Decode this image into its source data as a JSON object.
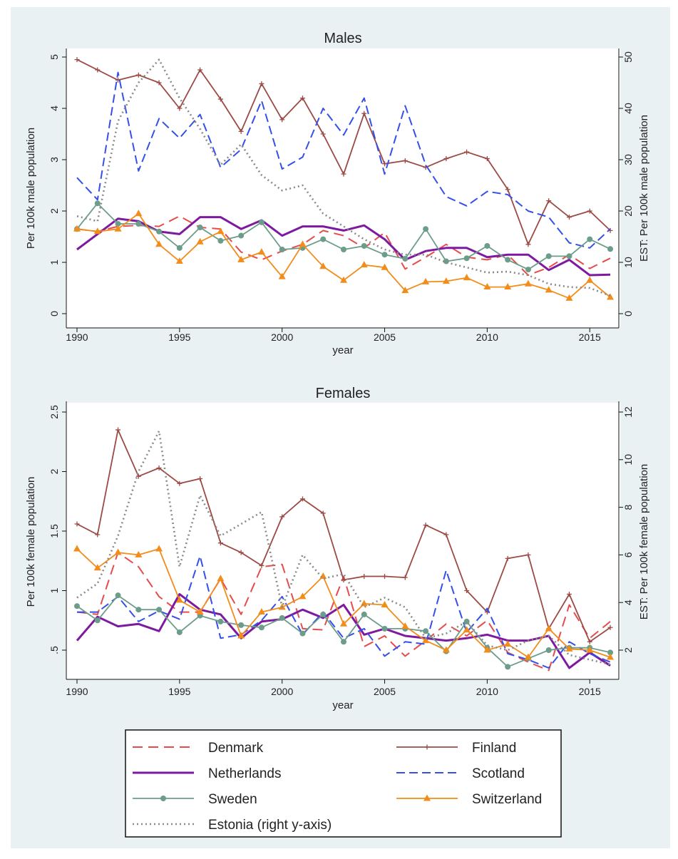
{
  "chart_data": [
    {
      "type": "line",
      "title": "Males",
      "xlabel": "year",
      "ylabel": "Per 100k male population",
      "y2label": "EST: Per 100k male population",
      "xlim": [
        1990,
        2016
      ],
      "ylim": [
        0,
        5
      ],
      "y2lim": [
        0,
        50
      ],
      "xticks": [
        1990,
        1995,
        2000,
        2005,
        2010,
        2015
      ],
      "yticks": [
        0,
        1,
        2,
        3,
        4,
        5
      ],
      "y2ticks": [
        0,
        10,
        20,
        30,
        40,
        50
      ],
      "x": [
        1990,
        1991,
        1992,
        1993,
        1994,
        1995,
        1996,
        1997,
        1998,
        1999,
        2000,
        2001,
        2002,
        2003,
        2004,
        2005,
        2006,
        2007,
        2008,
        2009,
        2010,
        2011,
        2012,
        2013,
        2014,
        2015,
        2016
      ],
      "series": [
        {
          "name": "Denmark",
          "axis": "left",
          "values": [
            1.65,
            1.6,
            1.7,
            1.72,
            1.7,
            1.9,
            1.68,
            1.65,
            1.2,
            1.05,
            1.22,
            1.35,
            1.62,
            1.52,
            1.28,
            1.58,
            0.87,
            1.1,
            1.35,
            1.1,
            1.05,
            1.15,
            0.75,
            0.9,
            1.15,
            0.88,
            1.08
          ]
        },
        {
          "name": "Finland",
          "axis": "left",
          "values": [
            4.95,
            4.75,
            4.55,
            4.65,
            4.5,
            4.0,
            4.75,
            4.18,
            3.55,
            4.48,
            3.78,
            4.2,
            3.5,
            2.72,
            3.9,
            2.92,
            2.98,
            2.85,
            3.02,
            3.15,
            3.02,
            2.42,
            1.35,
            2.2,
            1.88,
            2.0,
            1.62
          ]
        },
        {
          "name": "Netherlands",
          "axis": "left",
          "values": [
            1.25,
            1.55,
            1.85,
            1.8,
            1.6,
            1.55,
            1.88,
            1.88,
            1.65,
            1.82,
            1.52,
            1.7,
            1.7,
            1.62,
            1.72,
            1.45,
            1.05,
            1.22,
            1.28,
            1.28,
            1.1,
            1.15,
            1.15,
            0.85,
            1.05,
            0.75,
            0.76
          ]
        },
        {
          "name": "Scotland",
          "axis": "left",
          "values": [
            2.65,
            2.22,
            4.7,
            2.78,
            3.8,
            3.42,
            3.88,
            2.85,
            3.2,
            4.15,
            2.82,
            3.05,
            4.0,
            3.48,
            4.2,
            2.72,
            4.05,
            2.9,
            2.28,
            2.1,
            2.38,
            2.32,
            2.0,
            1.88,
            1.38,
            1.28,
            1.65
          ]
        },
        {
          "name": "Sweden",
          "axis": "left",
          "values": [
            1.65,
            2.15,
            1.75,
            1.75,
            1.6,
            1.28,
            1.68,
            1.42,
            1.52,
            1.78,
            1.25,
            1.28,
            1.45,
            1.25,
            1.32,
            1.15,
            1.07,
            1.65,
            1.02,
            1.08,
            1.32,
            1.05,
            0.86,
            1.12,
            1.12,
            1.45,
            1.26
          ]
        },
        {
          "name": "Switzerland",
          "axis": "left",
          "values": [
            1.65,
            1.6,
            1.65,
            1.95,
            1.35,
            1.02,
            1.4,
            1.6,
            1.05,
            1.2,
            0.72,
            1.35,
            0.92,
            0.65,
            0.95,
            0.9,
            0.45,
            0.62,
            0.63,
            0.7,
            0.52,
            0.52,
            0.58,
            0.46,
            0.3,
            0.65,
            0.32
          ]
        },
        {
          "name": "Estonia (right y-axis)",
          "axis": "right",
          "values": [
            19.0,
            18.0,
            37.5,
            45.0,
            49.5,
            42.0,
            36.0,
            29.0,
            33.0,
            27.0,
            24.0,
            25.0,
            19.5,
            17.0,
            14.5,
            12.5,
            11.5,
            11.5,
            10.0,
            9.0,
            8.0,
            8.2,
            7.5,
            5.8,
            5.2,
            5.0,
            3.5
          ]
        }
      ]
    },
    {
      "type": "line",
      "title": "Females",
      "xlabel": "year",
      "ylabel": "Per 100k female population",
      "y2label": "EST: Per 100k female population",
      "xlim": [
        1990,
        2016
      ],
      "ylim": [
        0.3,
        2.5
      ],
      "y2lim": [
        1.2,
        12
      ],
      "xticks": [
        1990,
        1995,
        2000,
        2005,
        2010,
        2015
      ],
      "yticks": [
        0.5,
        1,
        1.5,
        2,
        2.5
      ],
      "ytick_labels": [
        ".5",
        "1",
        "1.5",
        "2",
        "2.5"
      ],
      "y2ticks": [
        2,
        4,
        6,
        8,
        10,
        12
      ],
      "x": [
        1990,
        1991,
        1992,
        1993,
        1994,
        1995,
        1996,
        1997,
        1998,
        1999,
        2000,
        2001,
        2002,
        2003,
        2004,
        2005,
        2006,
        2007,
        2008,
        2009,
        2010,
        2011,
        2012,
        2013,
        2014,
        2015,
        2016
      ],
      "series": [
        {
          "name": "Denmark",
          "axis": "left",
          "values": [
            0.82,
            0.8,
            1.32,
            1.2,
            0.95,
            0.82,
            0.82,
            1.1,
            0.8,
            1.2,
            1.22,
            0.68,
            0.67,
            1.12,
            0.53,
            0.62,
            0.45,
            0.58,
            0.72,
            0.62,
            0.75,
            0.48,
            0.4,
            0.33,
            0.88,
            0.6,
            0.74
          ]
        },
        {
          "name": "Finland",
          "axis": "left",
          "values": [
            1.56,
            1.47,
            2.35,
            1.96,
            2.03,
            1.9,
            1.94,
            1.4,
            1.32,
            1.21,
            1.62,
            1.77,
            1.65,
            1.09,
            1.12,
            1.12,
            1.11,
            1.55,
            1.47,
            1.0,
            0.82,
            1.27,
            1.3,
            0.68,
            0.97,
            0.57,
            0.69
          ]
        },
        {
          "name": "Netherlands",
          "axis": "left",
          "values": [
            0.58,
            0.78,
            0.7,
            0.72,
            0.66,
            0.97,
            0.84,
            0.8,
            0.6,
            0.74,
            0.76,
            0.84,
            0.77,
            0.88,
            0.63,
            0.68,
            0.62,
            0.6,
            0.58,
            0.6,
            0.63,
            0.58,
            0.58,
            0.62,
            0.35,
            0.48,
            0.37
          ]
        },
        {
          "name": "Scotland",
          "axis": "left",
          "values": [
            0.82,
            0.82,
            0.95,
            0.74,
            0.83,
            0.76,
            1.29,
            0.6,
            0.63,
            0.75,
            0.95,
            0.63,
            0.82,
            0.6,
            0.68,
            0.45,
            0.57,
            0.55,
            1.17,
            0.65,
            0.85,
            0.47,
            0.42,
            0.35,
            0.57,
            0.47,
            0.4
          ]
        },
        {
          "name": "Sweden",
          "axis": "left",
          "values": [
            0.87,
            0.75,
            0.96,
            0.84,
            0.84,
            0.65,
            0.79,
            0.74,
            0.71,
            0.69,
            0.77,
            0.64,
            0.8,
            0.57,
            0.8,
            0.68,
            0.68,
            0.66,
            0.49,
            0.74,
            0.52,
            0.36,
            0.43,
            0.5,
            0.52,
            0.52,
            0.48
          ]
        },
        {
          "name": "Switzerland",
          "axis": "left",
          "values": [
            1.35,
            1.19,
            1.32,
            1.3,
            1.35,
            0.92,
            0.82,
            1.1,
            0.62,
            0.82,
            0.86,
            0.95,
            1.12,
            0.72,
            0.89,
            0.88,
            0.7,
            0.58,
            0.5,
            0.67,
            0.5,
            0.55,
            0.44,
            0.68,
            0.51,
            0.5,
            0.44
          ]
        },
        {
          "name": "Estonia (right y-axis)",
          "axis": "right",
          "values": [
            4.2,
            4.8,
            6.8,
            9.5,
            11.2,
            5.5,
            8.5,
            6.8,
            7.3,
            7.8,
            3.8,
            6.0,
            5.0,
            5.2,
            3.8,
            4.2,
            3.8,
            2.5,
            2.7,
            3.2,
            2.2,
            2.0,
            2.4,
            2.6,
            1.8,
            1.6,
            1.4
          ]
        }
      ]
    }
  ],
  "legend": [
    {
      "label": "Denmark",
      "color": "#e74c4c",
      "dash": "14,8",
      "marker": "none",
      "width": 2
    },
    {
      "label": "Finland",
      "color": "#9b4a44",
      "dash": "",
      "marker": "plus",
      "width": 1.8
    },
    {
      "label": "Netherlands",
      "color": "#7e1aa0",
      "dash": "",
      "marker": "none",
      "width": 3
    },
    {
      "label": "Scotland",
      "color": "#3550e8",
      "dash": "12,6",
      "marker": "none",
      "width": 2
    },
    {
      "label": "Sweden",
      "color": "#6b9d8a",
      "dash": "",
      "marker": "circle",
      "width": 1.8
    },
    {
      "label": "Switzerland",
      "color": "#f28c1a",
      "dash": "",
      "marker": "triangle",
      "width": 1.8
    },
    {
      "label": "Estonia (right y-axis)",
      "color": "#8a8a8a",
      "dash": "2,4",
      "marker": "none",
      "width": 2.6
    }
  ],
  "colors": {
    "background": "#eaf1f3",
    "plot_bg": "#ffffff"
  }
}
